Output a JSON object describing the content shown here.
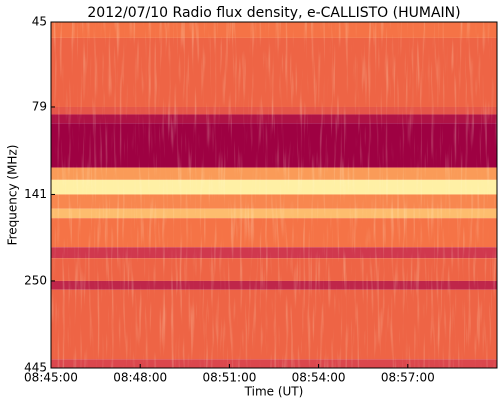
{
  "chart_data": {
    "type": "spectrogram",
    "title": "2012/07/10  Radio flux density, e-CALLISTO (HUMAIN)",
    "xlabel": "Time (UT)",
    "ylabel": "Frequency (MHz)",
    "xlim": [
      "08:45:00",
      "09:00:00"
    ],
    "xticks": [
      "08:45:00",
      "08:48:00",
      "08:51:00",
      "08:54:00",
      "08:57:00"
    ],
    "ylim": [
      445,
      45
    ],
    "yticks": [
      45,
      79,
      141,
      250,
      445
    ],
    "log_y": true,
    "colormap": [
      "#9e0142",
      "#d53e4f",
      "#f46d43",
      "#fdae61",
      "#fee08b",
      "#ffffbf",
      "#e6f598"
    ],
    "bands": [
      {
        "from": 45,
        "to": 50,
        "level": 0.35
      },
      {
        "from": 50,
        "to": 79,
        "level": 0.3
      },
      {
        "from": 79,
        "to": 83,
        "level": 0.25
      },
      {
        "from": 83,
        "to": 88,
        "level": 0.05
      },
      {
        "from": 88,
        "to": 118,
        "level": 0.0
      },
      {
        "from": 118,
        "to": 128,
        "level": 0.45
      },
      {
        "from": 128,
        "to": 141,
        "level": 0.75
      },
      {
        "from": 141,
        "to": 155,
        "level": 0.4
      },
      {
        "from": 155,
        "to": 165,
        "level": 0.55
      },
      {
        "from": 165,
        "to": 200,
        "level": 0.35
      },
      {
        "from": 200,
        "to": 215,
        "level": 0.15
      },
      {
        "from": 215,
        "to": 250,
        "level": 0.3
      },
      {
        "from": 250,
        "to": 265,
        "level": 0.1
      },
      {
        "from": 265,
        "to": 420,
        "level": 0.3
      },
      {
        "from": 420,
        "to": 445,
        "level": 0.2
      }
    ]
  }
}
